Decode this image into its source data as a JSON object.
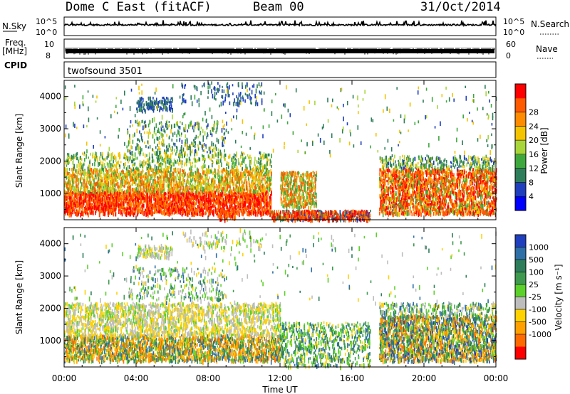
{
  "header": {
    "radar": "Dome C East (fitACF)",
    "beam": "Beam 00",
    "date": "31/Oct/2014"
  },
  "top_panels": {
    "nsky_label": "N.Sky",
    "nsky_ticks": [
      "10^5",
      "10^0"
    ],
    "nsearch_label": "N.Search",
    "nsearch_ticks": [
      "10^5",
      "10^0"
    ],
    "freq_label": "Freq.",
    "freq_unit": "[MHz]",
    "freq_ticks": [
      "10",
      "8"
    ],
    "nave_label": "Nave",
    "nave_ticks": [
      "60",
      "0"
    ],
    "cpid_label": "CPID",
    "cpid_value": "twofsound 3501"
  },
  "chart_data": [
    {
      "type": "heatmap",
      "name": "power",
      "ylabel": "Slant Range [km]",
      "xlabel": "",
      "xlim_hours": [
        0,
        24
      ],
      "ylim_km": [
        180,
        4500
      ],
      "yticks": [
        1000,
        2000,
        3000,
        4000
      ],
      "colorbar": {
        "label": "Power [dB]",
        "ticks": [
          "4",
          "8",
          "12",
          "16",
          "20",
          "24",
          "28"
        ],
        "colors": [
          "#0000ff",
          "#1f3fbf",
          "#2e7d5a",
          "#3ea83e",
          "#a8d63a",
          "#f5c400",
          "#ff8c00",
          "#ff5a00",
          "#ff0000"
        ]
      }
    },
    {
      "type": "heatmap",
      "name": "velocity",
      "ylabel": "Slant Range [km]",
      "xlabel": "Time UT",
      "xlim_hours": [
        0,
        24
      ],
      "ylim_km": [
        180,
        4500
      ],
      "yticks": [
        1000,
        2000,
        3000,
        4000
      ],
      "xticks": [
        "00:00",
        "04:00",
        "08:00",
        "12:00",
        "16:00",
        "20:00",
        "00:00"
      ],
      "colorbar": {
        "label": "Velocity [m s⁻¹]",
        "ticks": [
          "1000",
          "500",
          "100",
          "25",
          "-25",
          "-100",
          "-500",
          "-1000"
        ],
        "colors": [
          "#1f3fbf",
          "#2e6fa8",
          "#2e7d5a",
          "#3f9a4f",
          "#5cd12a",
          "#bdbdbd",
          "#ffd200",
          "#ffa000",
          "#ff6a00",
          "#ff0000"
        ]
      }
    }
  ]
}
